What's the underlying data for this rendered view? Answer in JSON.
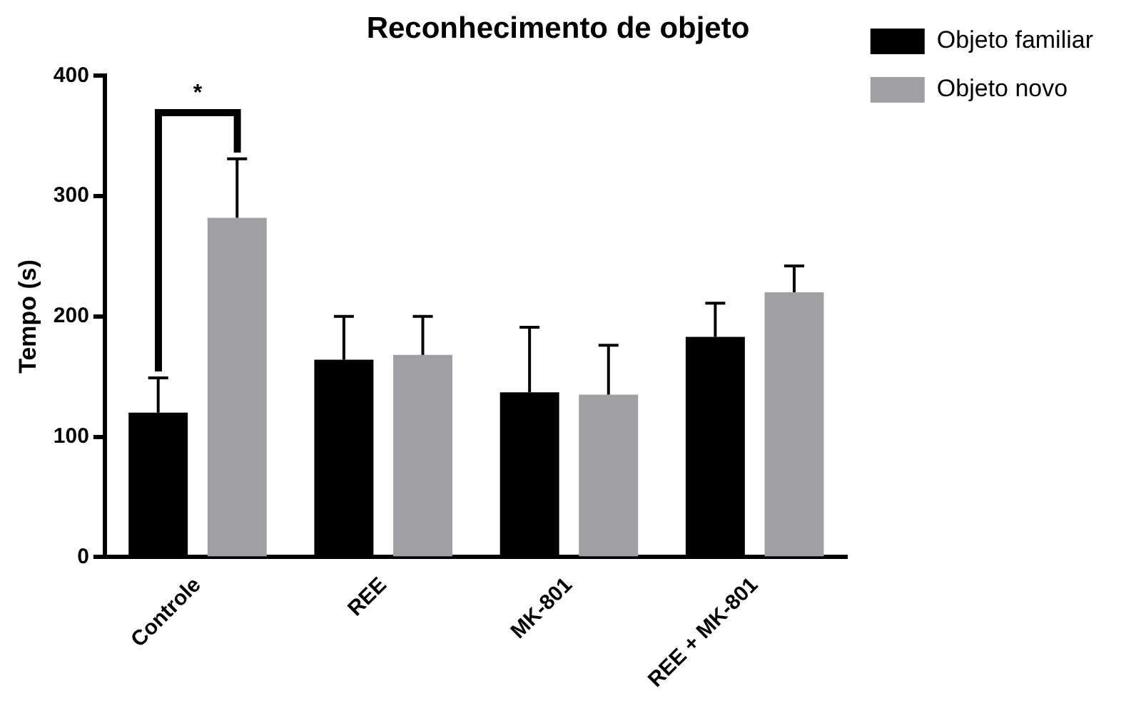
{
  "chart_data": {
    "type": "bar",
    "title": "Reconhecimento de objeto",
    "ylabel": "Tempo (s)",
    "categories": [
      "Controle",
      "REE",
      "MK-801",
      "REE + MK-801"
    ],
    "series": [
      {
        "name": "Objeto familiar",
        "color": "#000000",
        "values": [
          120,
          164,
          137,
          183
        ],
        "errors": [
          [
            120,
            149
          ],
          [
            164,
            200
          ],
          [
            137,
            191
          ],
          [
            183,
            211
          ]
        ]
      },
      {
        "name": "Objeto novo",
        "color": "#a0a0a4",
        "values": [
          282,
          168,
          135,
          220
        ],
        "errors": [
          [
            282,
            331
          ],
          [
            168,
            200
          ],
          [
            135,
            176
          ],
          [
            220,
            242
          ]
        ]
      }
    ],
    "ylim": [
      0,
      400
    ],
    "yticks": [
      0,
      100,
      200,
      300,
      400
    ],
    "grid": false,
    "legend": "top right",
    "annotations": [
      "*"
    ]
  }
}
